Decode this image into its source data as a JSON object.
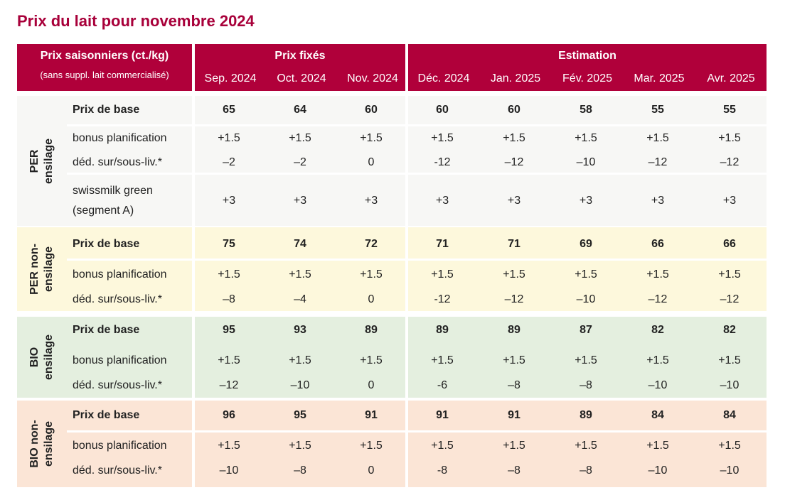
{
  "title": "Prix du lait pour novembre 2024",
  "header": {
    "main_line1": "Prix saisonniers (ct./kg)",
    "main_line2": "(sans suppl. lait commercialisé)",
    "group_fixed": "Prix fixés",
    "group_estimate": "Estimation",
    "months": [
      "Sep. 2024",
      "Oct. 2024",
      "Nov. 2024",
      "Déc. 2024",
      "Jan. 2025",
      "Fév. 2025",
      "Mar. 2025",
      "Avr. 2025"
    ]
  },
  "colors": {
    "brand": "#b0003a",
    "title": "#a8003a",
    "per_bg": "#f7f7f5",
    "per_non_bg": "#fdf8dc",
    "bio_bg": "#e4efdf",
    "bio_non_bg": "#fbe5d6"
  },
  "sections": [
    {
      "label_line1": "PER",
      "label_line2": "ensilage",
      "rows": [
        {
          "label": "Prix de base",
          "values": [
            "65",
            "64",
            "60",
            "60",
            "60",
            "58",
            "55",
            "55"
          ]
        },
        {
          "label": "bonus planification",
          "values": [
            "+1.5",
            "+1.5",
            "+1.5",
            "+1.5",
            "+1.5",
            "+1.5",
            "+1.5",
            "+1.5"
          ]
        },
        {
          "label": "déd. sur/sous-liv.*",
          "values": [
            "–2",
            "–2",
            "0",
            "-12",
            "–12",
            "–10",
            "–12",
            "–12"
          ]
        },
        {
          "label_line1": "swissmilk green",
          "label_line2": "(segment A)",
          "values": [
            "+3",
            "+3",
            "+3",
            "+3",
            "+3",
            "+3",
            "+3",
            "+3"
          ]
        }
      ]
    },
    {
      "label_line1": "PER non-",
      "label_line2": "ensilage",
      "rows": [
        {
          "label": "Prix de base",
          "values": [
            "75",
            "74",
            "72",
            "71",
            "71",
            "69",
            "66",
            "66"
          ]
        },
        {
          "label": "bonus planification",
          "values": [
            "+1.5",
            "+1.5",
            "+1.5",
            "+1.5",
            "+1.5",
            "+1.5",
            "+1.5",
            "+1.5"
          ]
        },
        {
          "label": "déd. sur/sous-liv.*",
          "values": [
            "–8",
            "–4",
            "0",
            "-12",
            "–12",
            "–10",
            "–12",
            "–12"
          ]
        }
      ]
    },
    {
      "label_line1": "BIO",
      "label_line2": "ensilage",
      "rows": [
        {
          "label": "Prix de base",
          "values": [
            "95",
            "93",
            "89",
            "89",
            "89",
            "87",
            "82",
            "82"
          ]
        },
        {
          "label": "bonus planification",
          "values": [
            "+1.5",
            "+1.5",
            "+1.5",
            "+1.5",
            "+1.5",
            "+1.5",
            "+1.5",
            "+1.5"
          ]
        },
        {
          "label": "déd. sur/sous-liv.*",
          "values": [
            "–12",
            "–10",
            "0",
            "-6",
            "–8",
            "–8",
            "–10",
            "–10"
          ]
        }
      ]
    },
    {
      "label_line1": "BIO non-",
      "label_line2": "ensilage",
      "rows": [
        {
          "label": "Prix de base",
          "values": [
            "96",
            "95",
            "91",
            "91",
            "91",
            "89",
            "84",
            "84"
          ]
        },
        {
          "label": "bonus planification",
          "values": [
            "+1.5",
            "+1.5",
            "+1.5",
            "+1.5",
            "+1.5",
            "+1.5",
            "+1.5",
            "+1.5"
          ]
        },
        {
          "label": "déd. sur/sous-liv.*",
          "values": [
            "–10",
            "–8",
            "0",
            "-8",
            "–8",
            "–8",
            "–10",
            "–10"
          ]
        }
      ]
    }
  ]
}
